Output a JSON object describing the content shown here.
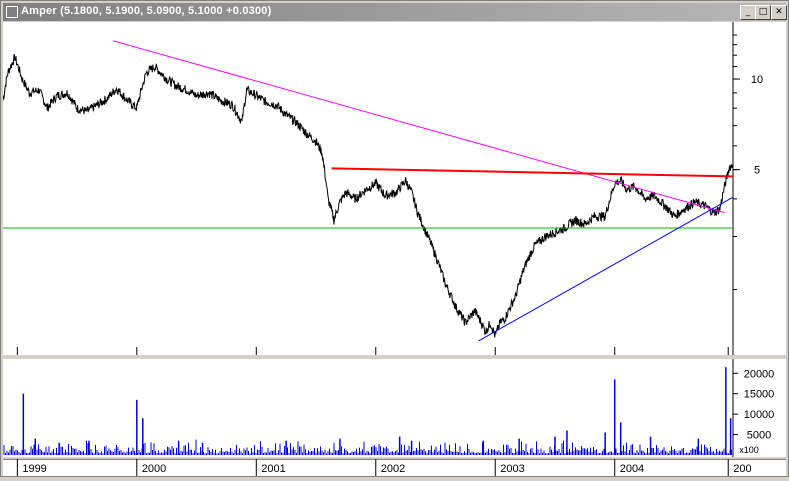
{
  "window": {
    "title": "Amper (5.1800, 5.1900, 5.0900, 5.1000 +0.0300)",
    "buttons": {
      "minimize": "_",
      "maximize": "□",
      "close": "✕"
    }
  },
  "colors": {
    "price": "#000000",
    "volume": "#0000dd",
    "upper_trendline": "#ff00ff",
    "resistance_line": "#ff0000",
    "support_line": "#00c000",
    "lower_trendline": "#0000ff"
  },
  "chart_data": [
    {
      "type": "line",
      "name": "price",
      "y_scale": "log",
      "ylim": [
        1.25,
        15
      ],
      "xlim": [
        1998.88,
        2004.99
      ],
      "y_ticks": [
        {
          "value": 10,
          "label": "10"
        },
        {
          "value": 5,
          "label": "5"
        }
      ],
      "x_ticks": [
        "1999",
        "2000",
        "2001",
        "2002",
        "2003",
        "2004",
        "200"
      ],
      "x_tick_values": [
        1999,
        2000,
        2001,
        2002,
        2003,
        2004,
        2004.95
      ],
      "series": [
        {
          "values_time": [
            1998.88,
            1998.92,
            1998.98,
            1999.04,
            1999.1,
            1999.18,
            1999.25,
            1999.33,
            1999.42,
            1999.5,
            1999.58,
            1999.67,
            1999.75,
            1999.83,
            1999.92,
            2000.0,
            2000.08,
            2000.15,
            2000.25,
            2000.33,
            2000.42,
            2000.5,
            2000.6,
            2000.7,
            2000.8,
            2000.88,
            2000.92,
            2001.0,
            2001.08,
            2001.17,
            2001.25,
            2001.33,
            2001.42,
            2001.5,
            2001.55,
            2001.6,
            2001.65,
            2001.7,
            2001.75,
            2001.83,
            2001.92,
            2002.0,
            2002.08,
            2002.17,
            2002.25,
            2002.3,
            2002.35,
            2002.42,
            2002.5,
            2002.58,
            2002.67,
            2002.75,
            2002.83,
            2002.92,
            2002.96,
            2003.0,
            2003.04,
            2003.08,
            2003.17,
            2003.25,
            2003.33,
            2003.42,
            2003.5,
            2003.58,
            2003.67,
            2003.75,
            2003.83,
            2003.92,
            2004.0,
            2004.05,
            2004.1,
            2004.17,
            2004.25,
            2004.33,
            2004.42,
            2004.5,
            2004.58,
            2004.67,
            2004.75,
            2004.83,
            2004.88,
            2004.92,
            2004.96,
            2004.99
          ],
          "values": [
            8.5,
            10.5,
            11.8,
            10.0,
            9.0,
            9.2,
            8.0,
            8.8,
            9.0,
            8.0,
            7.8,
            8.2,
            8.6,
            9.3,
            8.5,
            8.0,
            10.5,
            11.0,
            10.0,
            9.5,
            9.2,
            8.8,
            9.0,
            8.5,
            8.2,
            7.2,
            9.2,
            8.8,
            8.4,
            8.2,
            7.6,
            7.2,
            6.6,
            6.2,
            5.7,
            4.0,
            3.4,
            3.9,
            4.2,
            4.0,
            4.3,
            4.5,
            4.1,
            4.2,
            4.6,
            4.2,
            3.6,
            3.1,
            2.6,
            2.1,
            1.75,
            1.55,
            1.7,
            1.45,
            1.55,
            1.4,
            1.55,
            1.6,
            1.9,
            2.4,
            2.8,
            3.0,
            3.1,
            3.2,
            3.4,
            3.3,
            3.5,
            3.5,
            4.5,
            4.6,
            4.3,
            4.4,
            4.0,
            4.1,
            3.8,
            3.5,
            3.7,
            3.9,
            3.8,
            3.6,
            3.7,
            4.4,
            5.1,
            5.18
          ]
        }
      ],
      "trendlines": [
        {
          "name": "upper-trendline",
          "start": [
            1999.8,
            13.4
          ],
          "end": [
            2004.92,
            3.6
          ]
        },
        {
          "name": "resistance-line",
          "start": [
            2001.63,
            5.05
          ],
          "end": [
            2004.99,
            4.75
          ]
        },
        {
          "name": "support-line",
          "start": [
            1998.88,
            3.2
          ],
          "end": [
            2004.99,
            3.2
          ]
        },
        {
          "name": "lower-trendline",
          "start": [
            2002.86,
            1.35
          ],
          "end": [
            2004.99,
            4.05
          ]
        }
      ]
    },
    {
      "type": "bar",
      "name": "volume",
      "ylim": [
        0,
        23000
      ],
      "y_ticks": [
        {
          "value": 20000,
          "label": "20000"
        },
        {
          "value": 15000,
          "label": "15000"
        },
        {
          "value": 10000,
          "label": "10000"
        },
        {
          "value": 5000,
          "label": "5000"
        }
      ],
      "unit_label": "x100",
      "values_time": [
        1999.05,
        1999.15,
        1999.35,
        1999.6,
        2000.0,
        2000.05,
        2000.35,
        2000.55,
        2001.25,
        2001.7,
        2002.2,
        2002.3,
        2002.9,
        2003.2,
        2003.5,
        2003.6,
        2003.92,
        2004.0,
        2004.05,
        2004.3,
        2004.7,
        2004.93,
        2004.97
      ],
      "values": [
        15000,
        4000,
        3000,
        3500,
        13500,
        9000,
        3500,
        3000,
        3500,
        4000,
        4500,
        3500,
        3500,
        4000,
        4500,
        6000,
        5500,
        18500,
        8000,
        4500,
        4000,
        21500,
        9000
      ]
    }
  ]
}
